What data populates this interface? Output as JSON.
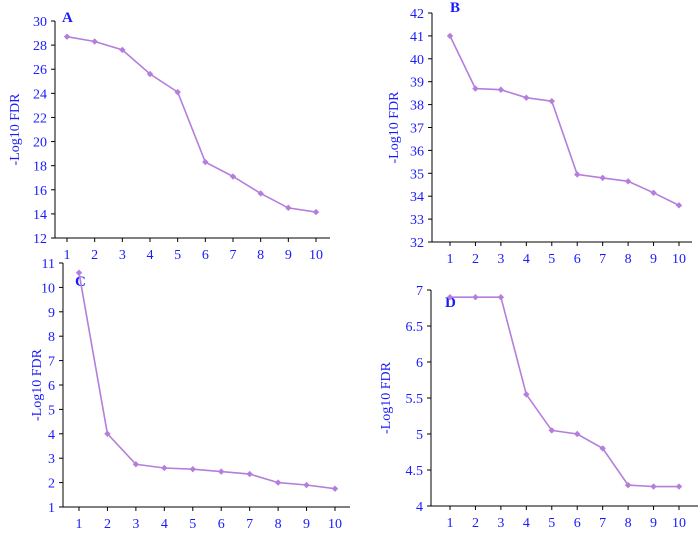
{
  "colors": {
    "series": "#b57edc",
    "text": "#1a1aff",
    "axis": "#000000"
  },
  "chart_data": [
    {
      "panel": "A",
      "type": "line",
      "ylabel": "-Log10  FDR",
      "x": [
        1,
        2,
        3,
        4,
        5,
        6,
        7,
        8,
        9,
        10
      ],
      "values": [
        28.7,
        28.3,
        27.6,
        25.6,
        24.1,
        18.3,
        17.1,
        15.7,
        14.5,
        14.15
      ],
      "ylim": [
        12,
        30
      ],
      "yticks": [
        12,
        14,
        16,
        18,
        20,
        22,
        24,
        26,
        28,
        30
      ]
    },
    {
      "panel": "B",
      "type": "line",
      "ylabel": "-Log10  FDR",
      "x": [
        1,
        2,
        3,
        4,
        5,
        6,
        7,
        8,
        9,
        10
      ],
      "values": [
        41.0,
        38.7,
        38.65,
        38.3,
        38.15,
        34.95,
        34.8,
        34.65,
        34.15,
        33.6
      ],
      "ylim": [
        32,
        42
      ],
      "yticks": [
        32,
        33,
        34,
        35,
        36,
        37,
        38,
        39,
        40,
        41,
        42
      ]
    },
    {
      "panel": "C",
      "type": "line",
      "ylabel": "-Log10 FDR",
      "x": [
        1,
        2,
        3,
        4,
        5,
        6,
        7,
        8,
        9,
        10
      ],
      "values": [
        10.6,
        4.0,
        2.75,
        2.6,
        2.55,
        2.45,
        2.35,
        2.0,
        1.9,
        1.75
      ],
      "ylim": [
        1,
        11
      ],
      "yticks": [
        1,
        2,
        3,
        4,
        5,
        6,
        7,
        8,
        9,
        10,
        11
      ]
    },
    {
      "panel": "D",
      "type": "line",
      "ylabel": "-Log10 FDR",
      "x": [
        1,
        2,
        3,
        4,
        5,
        6,
        7,
        8,
        9,
        10
      ],
      "values": [
        6.9,
        6.9,
        6.9,
        5.55,
        5.05,
        5.0,
        4.8,
        4.29,
        4.27,
        4.27
      ],
      "ylim": [
        4,
        7
      ],
      "yticks": [
        "4",
        "4.5",
        "5",
        "5.5",
        "6",
        "6.5",
        "7"
      ]
    }
  ]
}
